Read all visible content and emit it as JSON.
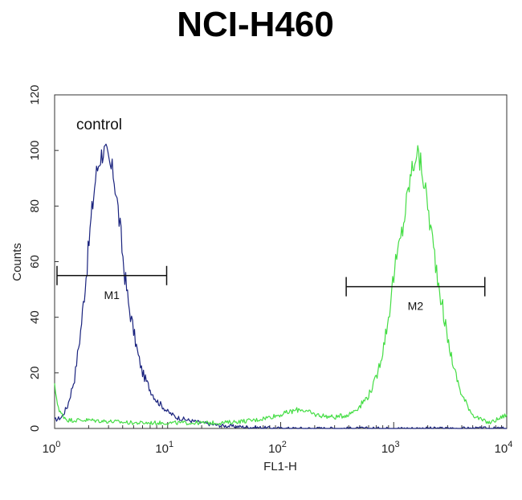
{
  "title": "NCI-H460",
  "chart_data": {
    "type": "line",
    "title": "NCI-H460",
    "xlabel": "FL1-H",
    "ylabel": "Counts",
    "xscale": "log",
    "xlim": [
      1,
      10000
    ],
    "ylim": [
      0,
      120
    ],
    "yticks": [
      "0",
      "20",
      "40",
      "60",
      "80",
      "100",
      "120"
    ],
    "xticks": [
      {
        "value": 1,
        "base": "10",
        "exp": "0"
      },
      {
        "value": 10,
        "base": "10",
        "exp": "1"
      },
      {
        "value": 100,
        "base": "10",
        "exp": "2"
      },
      {
        "value": 1000,
        "base": "10",
        "exp": "3"
      },
      {
        "value": 10000,
        "base": "10",
        "exp": "4"
      }
    ],
    "annotation": "control",
    "series": [
      {
        "color": "#1a237e",
        "x": [
          1.0,
          1.15,
          1.3,
          1.5,
          1.7,
          1.9,
          2.1,
          2.3,
          2.5,
          2.7,
          2.9,
          3.1,
          3.3,
          3.5,
          3.8,
          4.1,
          4.5,
          5.0,
          5.5,
          6.0,
          7.0,
          8.0,
          9.0,
          10,
          12,
          15,
          20,
          30,
          50,
          100,
          1000,
          10000
        ],
        "y": [
          3,
          4,
          8,
          18,
          35,
          55,
          75,
          90,
          97,
          100,
          98,
          94,
          92,
          85,
          72,
          58,
          45,
          35,
          26,
          20,
          14,
          10,
          8,
          6,
          4,
          3,
          2,
          1,
          0.5,
          0,
          0,
          0
        ]
      },
      {
        "color": "#44dd44",
        "x": [
          1.0,
          1.1,
          1.3,
          2,
          5,
          10,
          30,
          60,
          100,
          150,
          200,
          300,
          400,
          500,
          600,
          700,
          800,
          900,
          1000,
          1200,
          1400,
          1600,
          1800,
          2000,
          2300,
          2600,
          3000,
          3500,
          4000,
          5000,
          6000,
          7000,
          8000,
          10000
        ],
        "y": [
          15,
          6,
          3,
          3,
          2,
          2,
          2,
          3,
          5,
          7,
          5,
          4,
          5,
          8,
          12,
          18,
          28,
          40,
          55,
          72,
          90,
          100,
          92,
          80,
          62,
          48,
          32,
          20,
          12,
          5,
          3,
          2,
          3,
          5
        ]
      }
    ],
    "markers": [
      {
        "label": "M1",
        "x_start": 1.05,
        "x_end": 9.8,
        "y": 55
      },
      {
        "label": "M2",
        "x_start": 380,
        "x_end": 6400,
        "y": 51
      }
    ]
  }
}
